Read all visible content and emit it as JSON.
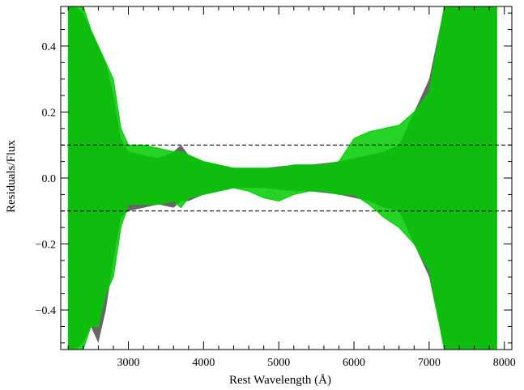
{
  "chart_data": {
    "type": "area",
    "title": "",
    "xlabel": "Rest Wavelength (Å)",
    "ylabel": "Residuals/Flux",
    "xlim": [
      2100,
      8100
    ],
    "ylim": [
      -0.52,
      0.52
    ],
    "x_ticks": [
      3000,
      4000,
      5000,
      6000,
      7000,
      8000
    ],
    "x_tick_labels": [
      "3000",
      "4000",
      "5000",
      "6000",
      "7000",
      "8000"
    ],
    "y_ticks": [
      -0.4,
      -0.2,
      0.0,
      0.2,
      0.4
    ],
    "y_tick_labels": [
      "−0.4",
      "−0.2",
      "0.0",
      "0.2",
      "0.4"
    ],
    "grid": false,
    "reference_lines": [
      0.1,
      -0.1
    ],
    "colors": {
      "band": "#666666",
      "residual": "#00cc00",
      "reference": "#000000"
    },
    "band_x": [
      2200,
      2300,
      2400,
      2500,
      2600,
      2700,
      2800,
      2900,
      3000,
      3200,
      3400,
      3600,
      3700,
      3800,
      4000,
      4200,
      4400,
      4600,
      4800,
      5000,
      5200,
      5400,
      5600,
      5800,
      6000,
      6200,
      6400,
      6600,
      6800,
      7000,
      7200,
      7400,
      7600,
      7800,
      7900
    ],
    "band_upper": [
      0.52,
      0.52,
      0.5,
      0.45,
      0.4,
      0.35,
      0.25,
      0.12,
      0.08,
      0.07,
      0.06,
      0.08,
      0.1,
      0.07,
      0.05,
      0.04,
      0.03,
      0.03,
      0.03,
      0.035,
      0.04,
      0.04,
      0.045,
      0.05,
      0.06,
      0.07,
      0.08,
      0.1,
      0.2,
      0.3,
      0.52,
      0.52,
      0.52,
      0.52,
      0.52
    ],
    "band_lower": [
      -0.52,
      -0.52,
      -0.5,
      -0.45,
      -0.5,
      -0.4,
      -0.25,
      -0.12,
      -0.1,
      -0.09,
      -0.08,
      -0.09,
      -0.07,
      -0.07,
      -0.05,
      -0.04,
      -0.03,
      -0.03,
      -0.03,
      -0.035,
      -0.04,
      -0.04,
      -0.045,
      -0.05,
      -0.06,
      -0.07,
      -0.09,
      -0.1,
      -0.2,
      -0.3,
      -0.52,
      -0.52,
      -0.52,
      -0.52,
      -0.52
    ],
    "series": [
      {
        "x": [
          2200,
          2300,
          2400,
          2500,
          2600,
          2700,
          2800,
          2900,
          3000,
          3200,
          3400,
          3600,
          3700,
          3800,
          4000,
          4200,
          4400,
          4600,
          4800,
          5000,
          5200,
          5400,
          5600,
          5800,
          6000,
          6200,
          6400,
          6600,
          6800,
          7000,
          7200,
          7400,
          7600,
          7800,
          7900
        ],
        "upper": [
          0.52,
          0.52,
          0.52,
          0.45,
          0.4,
          0.35,
          0.3,
          0.15,
          0.1,
          0.1,
          0.09,
          0.08,
          0.08,
          0.07,
          0.05,
          0.04,
          0.03,
          0.03,
          0.03,
          0.03,
          0.04,
          0.04,
          0.04,
          0.05,
          0.12,
          0.14,
          0.15,
          0.16,
          0.2,
          0.26,
          0.52,
          0.52,
          0.52,
          0.52,
          0.52
        ],
        "lower": [
          -0.52,
          -0.52,
          -0.52,
          -0.45,
          -0.45,
          -0.35,
          -0.3,
          -0.15,
          -0.08,
          -0.08,
          -0.08,
          -0.07,
          -0.09,
          -0.06,
          -0.05,
          -0.04,
          -0.03,
          -0.04,
          -0.06,
          -0.07,
          -0.05,
          -0.04,
          -0.04,
          -0.05,
          -0.05,
          -0.08,
          -0.12,
          -0.15,
          -0.2,
          -0.28,
          -0.52,
          -0.52,
          -0.52,
          -0.52,
          -0.52
        ]
      }
    ]
  }
}
